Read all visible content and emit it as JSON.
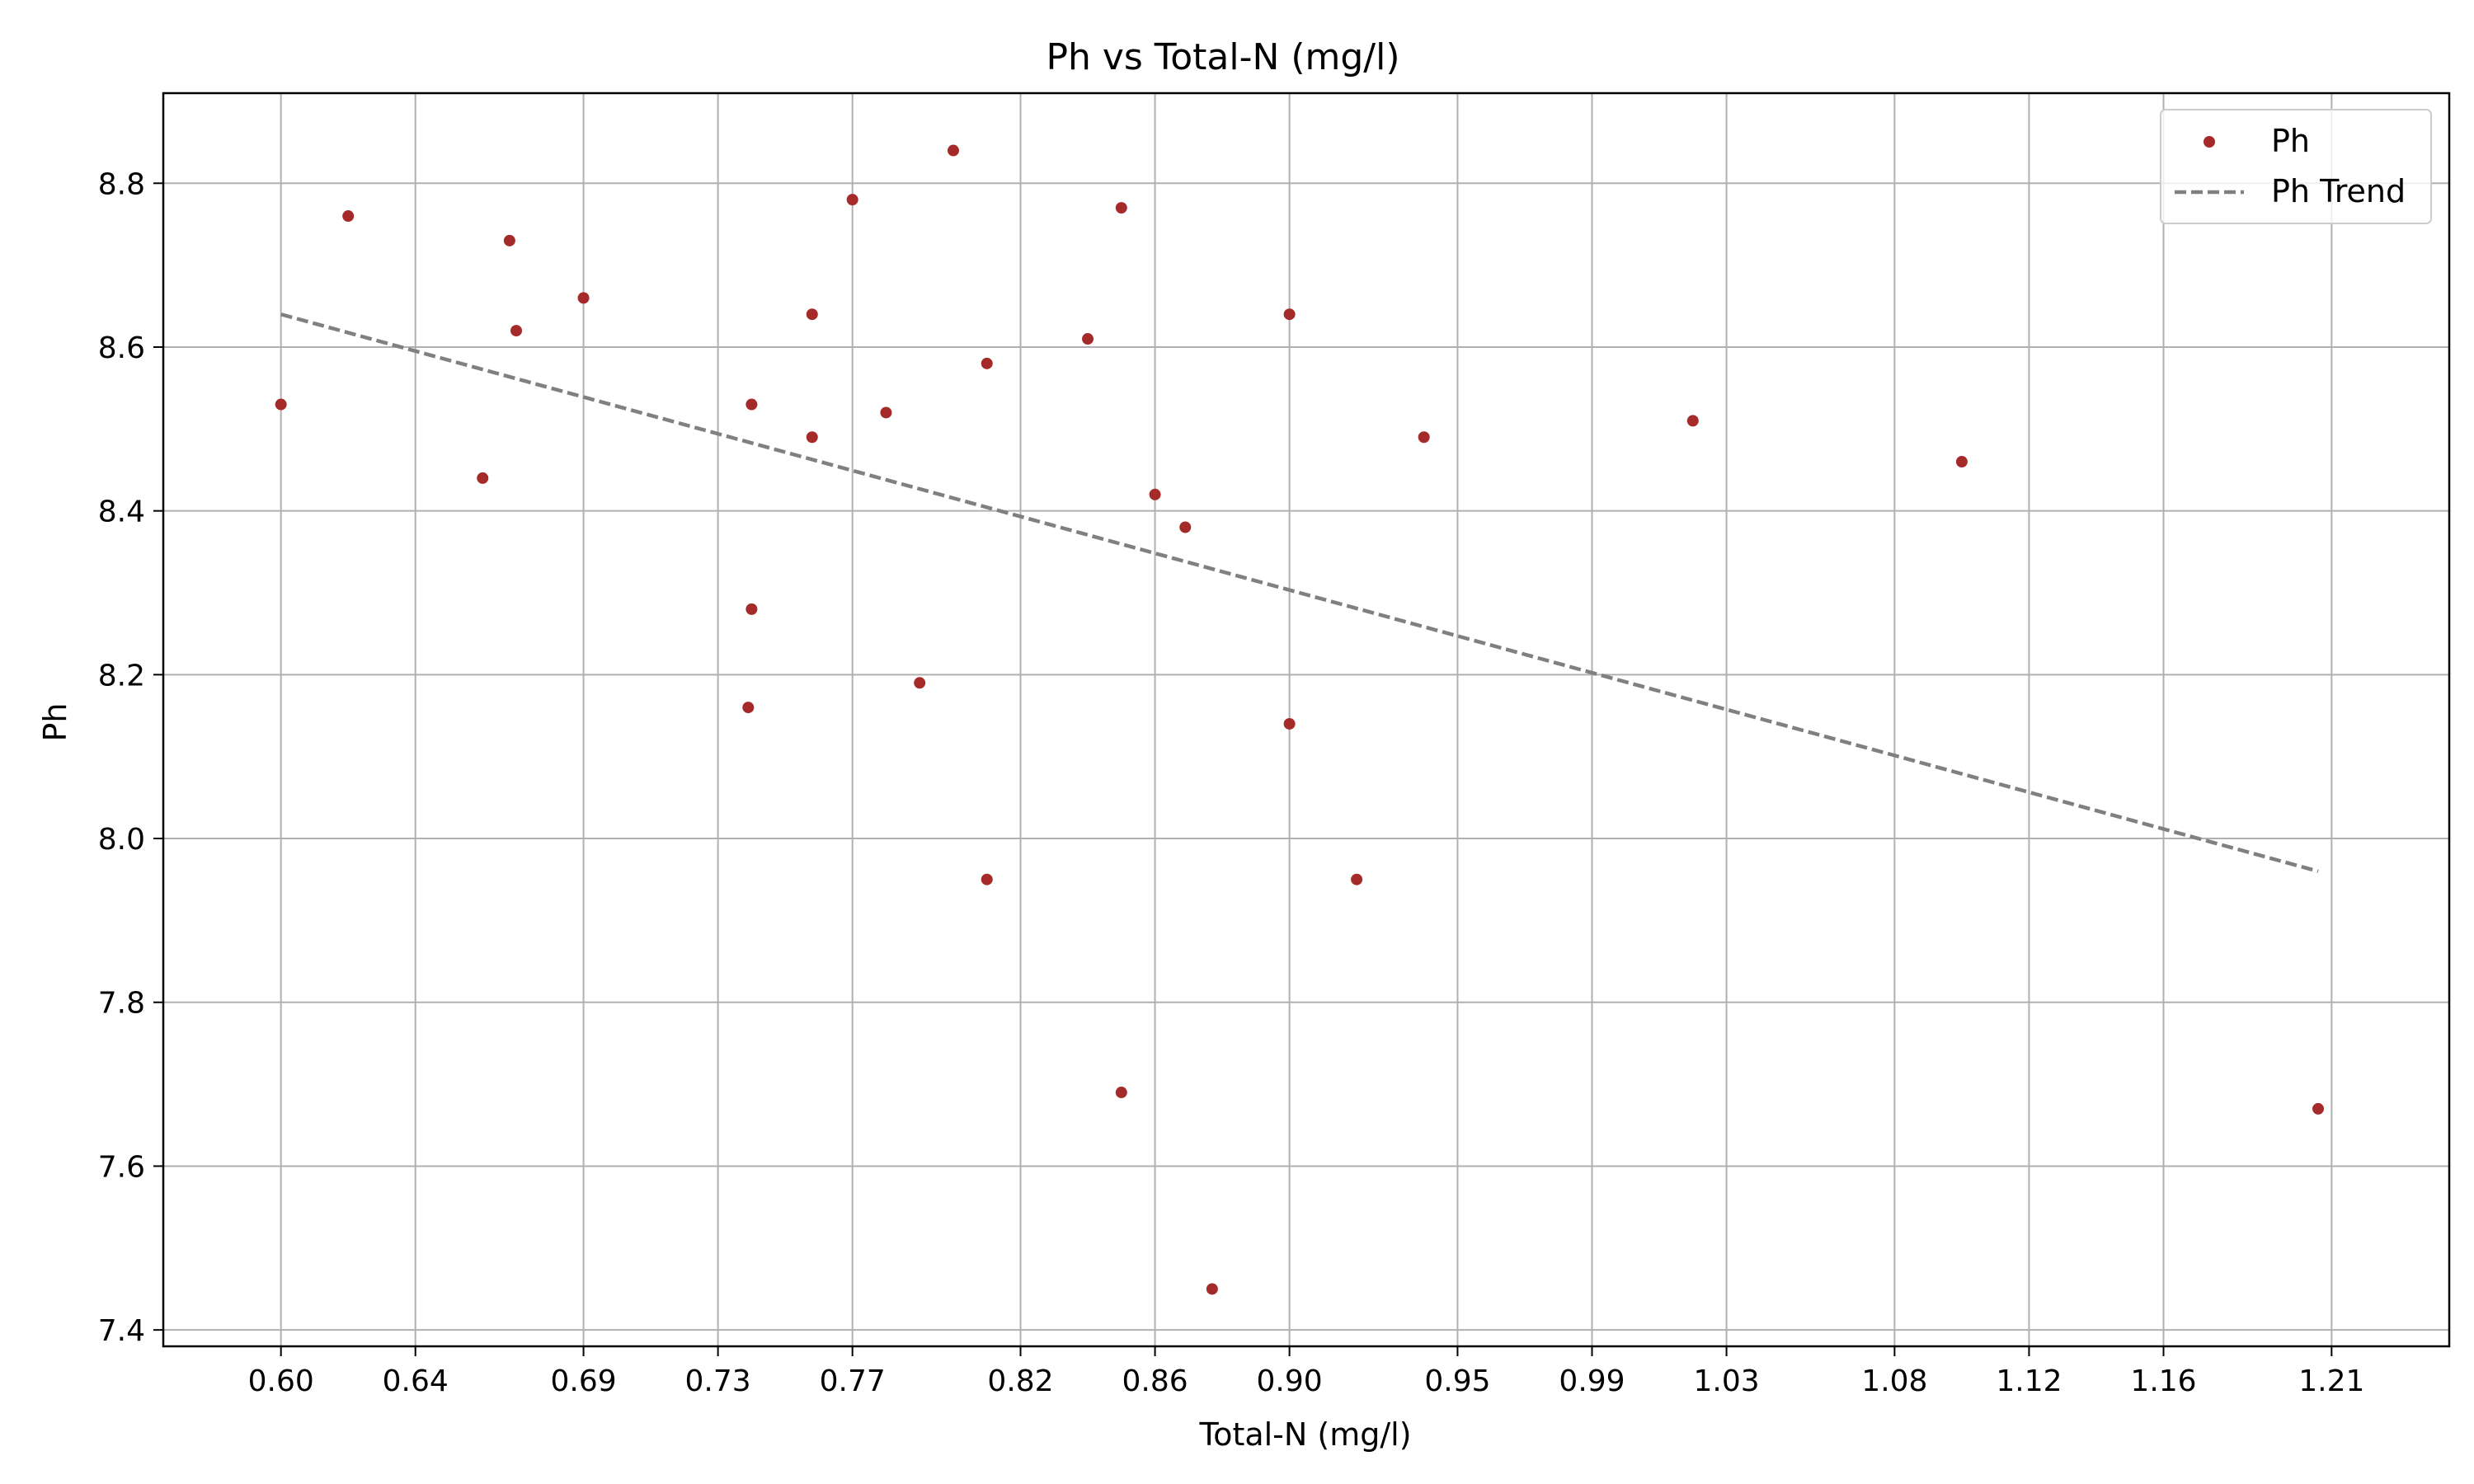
{
  "chart_data": {
    "type": "scatter",
    "title": "Ph vs Total-N (mg/l)",
    "xlabel": "Total-N (mg/l)",
    "ylabel": "Ph",
    "xlim": [
      0.565,
      1.245
    ],
    "ylim": [
      7.38,
      8.91
    ],
    "x_ticks": [
      0.6,
      0.64,
      0.69,
      0.73,
      0.77,
      0.82,
      0.86,
      0.9,
      0.95,
      0.99,
      1.03,
      1.08,
      1.12,
      1.16,
      1.21
    ],
    "x_tick_labels": [
      "0.60",
      "0.64",
      "0.69",
      "0.73",
      "0.77",
      "0.82",
      "0.86",
      "0.90",
      "0.95",
      "0.99",
      "1.03",
      "1.08",
      "1.12",
      "1.16",
      "1.21"
    ],
    "y_ticks": [
      7.4,
      7.6,
      7.8,
      8.0,
      8.2,
      8.4,
      8.6,
      8.8
    ],
    "y_tick_labels": [
      "7.4",
      "7.6",
      "7.8",
      "8.0",
      "8.2",
      "8.4",
      "8.6",
      "8.8"
    ],
    "grid": true,
    "legend_position": "top-right",
    "series": [
      {
        "name": "Ph",
        "kind": "scatter",
        "color": "#a52a2a",
        "points": [
          {
            "x": 0.6,
            "y": 8.53
          },
          {
            "x": 0.62,
            "y": 8.76
          },
          {
            "x": 0.66,
            "y": 8.44
          },
          {
            "x": 0.668,
            "y": 8.73
          },
          {
            "x": 0.67,
            "y": 8.62
          },
          {
            "x": 0.69,
            "y": 8.66
          },
          {
            "x": 0.74,
            "y": 8.53
          },
          {
            "x": 0.74,
            "y": 8.28
          },
          {
            "x": 0.739,
            "y": 8.16
          },
          {
            "x": 0.758,
            "y": 8.64
          },
          {
            "x": 0.758,
            "y": 8.49
          },
          {
            "x": 0.77,
            "y": 8.78
          },
          {
            "x": 0.78,
            "y": 8.52
          },
          {
            "x": 0.79,
            "y": 8.19
          },
          {
            "x": 0.8,
            "y": 8.84
          },
          {
            "x": 0.81,
            "y": 8.58
          },
          {
            "x": 0.81,
            "y": 7.95
          },
          {
            "x": 0.84,
            "y": 8.61
          },
          {
            "x": 0.85,
            "y": 8.77
          },
          {
            "x": 0.85,
            "y": 7.69
          },
          {
            "x": 0.86,
            "y": 8.42
          },
          {
            "x": 0.869,
            "y": 8.38
          },
          {
            "x": 0.877,
            "y": 7.45
          },
          {
            "x": 0.9,
            "y": 8.64
          },
          {
            "x": 0.9,
            "y": 8.14
          },
          {
            "x": 0.92,
            "y": 7.95
          },
          {
            "x": 0.94,
            "y": 8.49
          },
          {
            "x": 1.02,
            "y": 8.51
          },
          {
            "x": 1.1,
            "y": 8.46
          },
          {
            "x": 1.206,
            "y": 7.67
          }
        ]
      },
      {
        "name": "Ph Trend",
        "kind": "line",
        "style": "dashed",
        "color": "#808080",
        "points": [
          {
            "x": 0.6,
            "y": 8.64
          },
          {
            "x": 1.206,
            "y": 7.96
          }
        ]
      }
    ]
  }
}
